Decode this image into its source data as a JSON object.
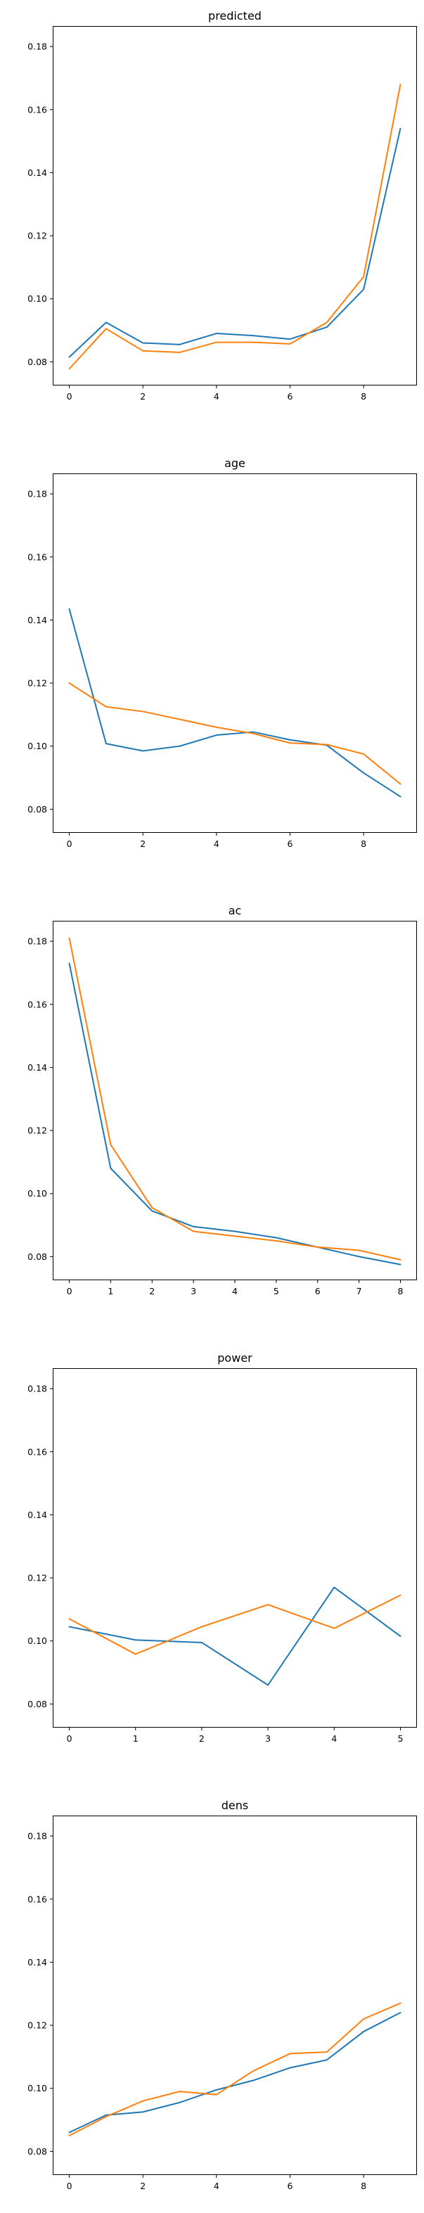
{
  "colors": {
    "series_a": "#1f77b4",
    "series_b": "#ff7f0e",
    "frame": "#000000",
    "background": "#ffffff"
  },
  "chart_data": [
    {
      "type": "line",
      "title": "predicted",
      "xlabel": "",
      "ylabel": "",
      "xlim": [
        -0.45,
        9.45
      ],
      "ylim": [
        0.0725,
        0.1865
      ],
      "xticks": [
        0,
        2,
        4,
        6,
        8
      ],
      "yticks": [
        0.08,
        0.1,
        0.12,
        0.14,
        0.16,
        0.18
      ],
      "grid": false,
      "legend": "none",
      "x": [
        0,
        1,
        2,
        3,
        4,
        5,
        6,
        7,
        8,
        9
      ],
      "series": [
        {
          "color": "#1f77b4",
          "values": [
            0.0815,
            0.0925,
            0.086,
            0.0855,
            0.089,
            0.0883,
            0.0872,
            0.091,
            0.103,
            0.154
          ]
        },
        {
          "color": "#ff7f0e",
          "values": [
            0.0778,
            0.0905,
            0.0835,
            0.083,
            0.0862,
            0.0862,
            0.0857,
            0.0925,
            0.107,
            0.168
          ]
        }
      ]
    },
    {
      "type": "line",
      "title": "age",
      "xlabel": "",
      "ylabel": "",
      "xlim": [
        -0.45,
        9.45
      ],
      "ylim": [
        0.0725,
        0.1865
      ],
      "xticks": [
        0,
        2,
        4,
        6,
        8
      ],
      "yticks": [
        0.08,
        0.1,
        0.12,
        0.14,
        0.16,
        0.18
      ],
      "grid": false,
      "legend": "none",
      "x": [
        0,
        1,
        2,
        3,
        4,
        5,
        6,
        7,
        8,
        9
      ],
      "series": [
        {
          "color": "#1f77b4",
          "values": [
            0.1435,
            0.1008,
            0.0985,
            0.1,
            0.1035,
            0.1045,
            0.102,
            0.1003,
            0.0915,
            0.084
          ]
        },
        {
          "color": "#ff7f0e",
          "values": [
            0.12,
            0.1125,
            0.111,
            0.1085,
            0.106,
            0.104,
            0.101,
            0.1005,
            0.0975,
            0.088
          ]
        }
      ]
    },
    {
      "type": "line",
      "title": "ac",
      "xlabel": "",
      "ylabel": "",
      "xlim": [
        -0.4,
        8.4
      ],
      "ylim": [
        0.0725,
        0.1865
      ],
      "xticks": [
        0,
        1,
        2,
        3,
        4,
        5,
        6,
        7,
        8
      ],
      "yticks": [
        0.08,
        0.1,
        0.12,
        0.14,
        0.16,
        0.18
      ],
      "grid": false,
      "legend": "none",
      "x": [
        0,
        1,
        2,
        3,
        4,
        5,
        6,
        7,
        8
      ],
      "series": [
        {
          "color": "#1f77b4",
          "values": [
            0.173,
            0.108,
            0.0945,
            0.0895,
            0.088,
            0.086,
            0.083,
            0.08,
            0.0775
          ]
        },
        {
          "color": "#ff7f0e",
          "values": [
            0.181,
            0.1155,
            0.0955,
            0.088,
            0.0865,
            0.085,
            0.083,
            0.082,
            0.079
          ]
        }
      ]
    },
    {
      "type": "line",
      "title": "power",
      "xlabel": "",
      "ylabel": "",
      "xlim": [
        -0.25,
        5.25
      ],
      "ylim": [
        0.0725,
        0.1865
      ],
      "xticks": [
        0,
        1,
        2,
        3,
        4,
        5
      ],
      "yticks": [
        0.08,
        0.1,
        0.12,
        0.14,
        0.16,
        0.18
      ],
      "grid": false,
      "legend": "none",
      "x": [
        0,
        1,
        2,
        3,
        4,
        5
      ],
      "series": [
        {
          "color": "#1f77b4",
          "values": [
            0.1045,
            0.1003,
            0.0995,
            0.086,
            0.117,
            0.1015
          ]
        },
        {
          "color": "#ff7f0e",
          "values": [
            0.107,
            0.0958,
            0.1045,
            0.1115,
            0.104,
            0.1145
          ]
        }
      ]
    },
    {
      "type": "line",
      "title": "dens",
      "xlabel": "",
      "ylabel": "",
      "xlim": [
        -0.45,
        9.45
      ],
      "ylim": [
        0.0725,
        0.1865
      ],
      "xticks": [
        0,
        2,
        4,
        6,
        8
      ],
      "yticks": [
        0.08,
        0.1,
        0.12,
        0.14,
        0.16,
        0.18
      ],
      "grid": false,
      "legend": "none",
      "x": [
        0,
        1,
        2,
        3,
        4,
        5,
        6,
        7,
        8,
        9
      ],
      "series": [
        {
          "color": "#1f77b4",
          "values": [
            0.086,
            0.0915,
            0.0925,
            0.0955,
            0.0995,
            0.1025,
            0.1065,
            0.109,
            0.118,
            0.124
          ]
        },
        {
          "color": "#ff7f0e",
          "values": [
            0.085,
            0.091,
            0.096,
            0.099,
            0.098,
            0.1055,
            0.111,
            0.1115,
            0.122,
            0.127
          ]
        }
      ]
    }
  ]
}
